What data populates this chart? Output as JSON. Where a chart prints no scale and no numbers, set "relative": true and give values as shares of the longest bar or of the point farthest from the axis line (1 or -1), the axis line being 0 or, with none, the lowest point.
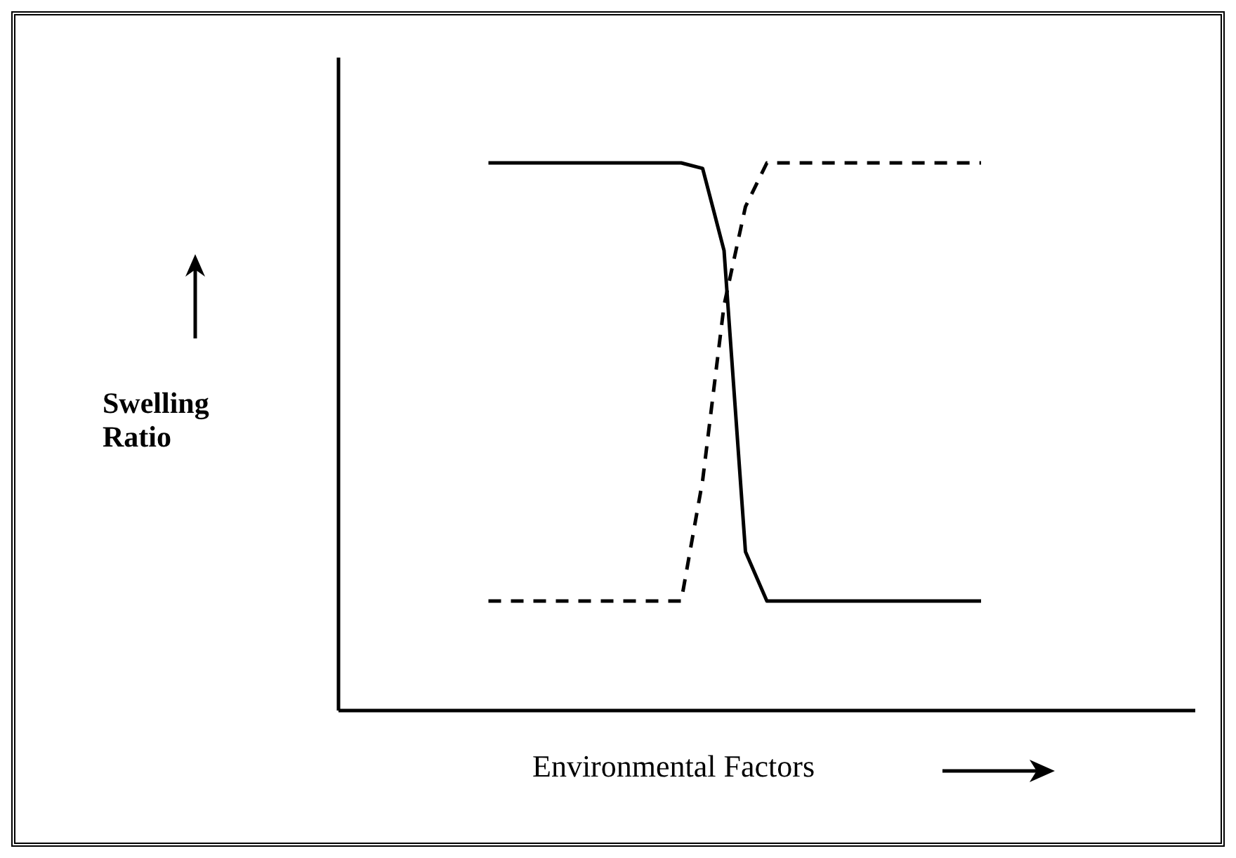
{
  "chart_data": {
    "type": "line",
    "relative": true,
    "xlabel": "Environmental Factors",
    "ylabel": "Swelling Ratio",
    "categories": [
      null,
      null,
      null,
      null,
      null,
      null,
      null,
      null,
      null,
      null,
      null,
      null,
      null,
      null,
      null,
      null,
      null,
      null,
      null,
      null,
      null,
      null,
      null,
      null,
      null,
      null,
      null,
      null,
      null,
      null,
      null,
      null,
      null,
      null,
      null,
      null,
      null,
      null,
      null,
      null,
      null
    ],
    "series": [
      {
        "color": "#000000",
        "line_style": "solid",
        "values": [
          null,
          null,
          null,
          null,
          null,
          null,
          null,
          1,
          1,
          1,
          1,
          1,
          1,
          1,
          1,
          1,
          1,
          0.99,
          0.84,
          0.29,
          0.2,
          0.2,
          0.2,
          0.2,
          0.2,
          0.2,
          0.2,
          0.2,
          0.2,
          0.2,
          0.2,
          null,
          null,
          null,
          null,
          null,
          null,
          null,
          null,
          null,
          null
        ]
      },
      {
        "color": "#000000",
        "line_style": "dashed",
        "values": [
          null,
          null,
          null,
          null,
          null,
          null,
          null,
          0.2,
          0.2,
          0.2,
          0.2,
          0.2,
          0.2,
          0.2,
          0.2,
          0.2,
          0.2,
          0.42,
          0.74,
          0.92,
          1,
          1,
          1,
          1,
          1,
          1,
          1,
          1,
          1,
          1,
          1,
          null,
          null,
          null,
          null,
          null,
          null,
          null,
          null,
          null,
          null
        ]
      }
    ],
    "marker": "none",
    "grid": false,
    "legend": false
  }
}
